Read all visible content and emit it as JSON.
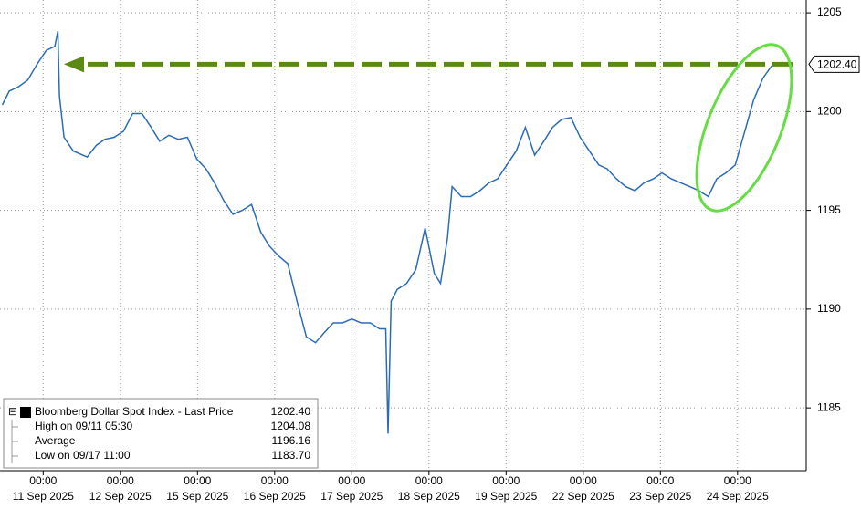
{
  "chart_data": {
    "type": "line",
    "x": [
      -0.53,
      -0.44,
      -0.32,
      -0.2,
      -0.08,
      0.04,
      0.15,
      0.19,
      0.21,
      0.27,
      0.39,
      0.57,
      0.69,
      0.8,
      0.92,
      1.04,
      1.16,
      1.28,
      1.4,
      1.51,
      1.63,
      1.75,
      1.87,
      1.99,
      2.11,
      2.22,
      2.34,
      2.46,
      2.58,
      2.7,
      2.82,
      2.93,
      3.05,
      3.17,
      3.29,
      3.41,
      3.53,
      3.64,
      3.76,
      3.88,
      4.0,
      4.12,
      4.24,
      4.36,
      4.44,
      4.47,
      4.51,
      4.59,
      4.71,
      4.83,
      4.95,
      5.07,
      5.15,
      5.24,
      5.3,
      5.42,
      5.54,
      5.66,
      5.78,
      5.89,
      6.01,
      6.13,
      6.25,
      6.37,
      6.49,
      6.6,
      6.72,
      6.84,
      6.96,
      7.08,
      7.2,
      7.31,
      7.43,
      7.55,
      7.67,
      7.79,
      7.91,
      8.02,
      8.14,
      8.26,
      8.38,
      8.5,
      8.62,
      8.73,
      8.85,
      8.97,
      9.09,
      9.21,
      9.33,
      9.44,
      9.53
    ],
    "series": [
      {
        "name": "Bloomberg Dollar Spot Index - Last Price",
        "color": "#2b6cb8",
        "values": [
          1200.34,
          1201.03,
          1201.26,
          1201.6,
          1202.4,
          1203.1,
          1203.3,
          1204.08,
          1200.8,
          1198.7,
          1198.0,
          1197.7,
          1198.3,
          1198.6,
          1198.7,
          1199.0,
          1199.9,
          1199.9,
          1199.2,
          1198.5,
          1198.8,
          1198.6,
          1198.7,
          1197.6,
          1197.1,
          1196.4,
          1195.5,
          1194.8,
          1195.0,
          1195.3,
          1193.9,
          1193.2,
          1192.7,
          1192.3,
          1190.4,
          1188.6,
          1188.3,
          1188.8,
          1189.3,
          1189.3,
          1189.5,
          1189.3,
          1189.3,
          1189.0,
          1189.0,
          1183.7,
          1190.4,
          1191.0,
          1191.3,
          1192.0,
          1194.1,
          1191.8,
          1191.3,
          1193.6,
          1196.2,
          1195.7,
          1195.7,
          1196.0,
          1196.4,
          1196.6,
          1197.3,
          1198.0,
          1199.2,
          1197.8,
          1198.5,
          1199.2,
          1199.6,
          1199.7,
          1198.7,
          1198.0,
          1197.3,
          1197.1,
          1196.6,
          1196.2,
          1196.0,
          1196.4,
          1196.6,
          1196.9,
          1196.6,
          1196.4,
          1196.2,
          1196.0,
          1195.7,
          1196.6,
          1196.9,
          1197.3,
          1198.95,
          1200.6,
          1201.7,
          1202.3,
          1202.4
        ]
      }
    ],
    "xlim": [
      -0.56,
      9.89
    ],
    "xticks": [
      {
        "value": 0,
        "label": "00:00"
      },
      {
        "value": 1,
        "label": "00:00"
      },
      {
        "value": 2,
        "label": "00:00"
      },
      {
        "value": 3,
        "label": "00:00"
      },
      {
        "value": 4,
        "label": "00:00"
      },
      {
        "value": 5,
        "label": "00:00"
      },
      {
        "value": 6,
        "label": "00:00"
      },
      {
        "value": 7,
        "label": "00:00"
      },
      {
        "value": 8,
        "label": "00:00"
      },
      {
        "value": 9,
        "label": "00:00"
      }
    ],
    "xtick_dates": [
      "11 Sep 2025",
      "12 Sep 2025",
      "15 Sep 2025",
      "16 Sep 2025",
      "17 Sep 2025",
      "18 Sep 2025",
      "19 Sep 2025",
      "22 Sep 2025",
      "23 Sep 2025",
      "24 Sep 2025"
    ],
    "ylim": [
      1181.82,
      1205.65
    ],
    "yticks": [
      1185,
      1190,
      1195,
      1200,
      1205
    ],
    "grid": true,
    "annotation_color": "#5a8a14",
    "highlight_color": "#66dd44",
    "legend": {
      "entries": [
        {
          "label": "Bloomberg Dollar Spot Index - Last Price",
          "value": 1202.4,
          "value_label": "1202.40"
        },
        {
          "label": "High on 09/11 05:30",
          "value": 1204.08,
          "value_label": "1204.08"
        },
        {
          "label": "Average",
          "value": 1196.16,
          "value_label": "1196.16"
        },
        {
          "label": "Low on 09/17 11:00",
          "value": 1183.7,
          "value_label": "1183.70"
        }
      ]
    }
  }
}
